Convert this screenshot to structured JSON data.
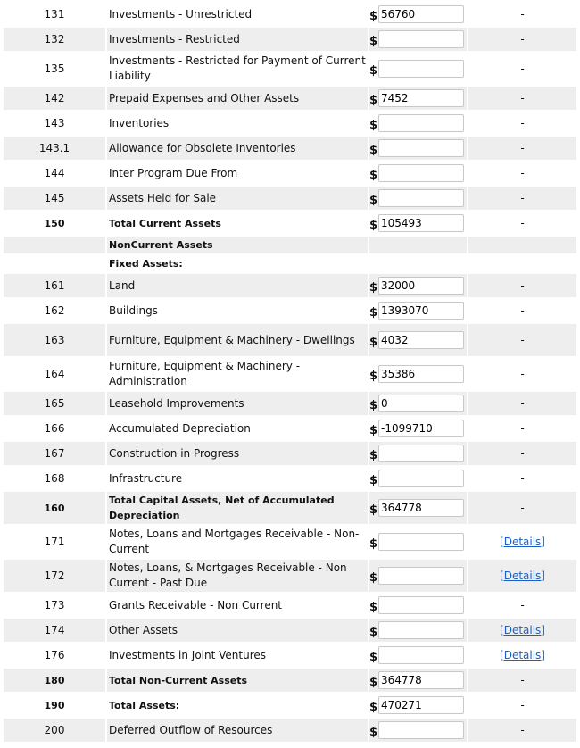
{
  "currency_symbol": "$",
  "details_label": "[Details]",
  "dash": "-",
  "rows": [
    {
      "code": "131",
      "label": "Investments - Unrestricted",
      "value": "56760",
      "action": "dash"
    },
    {
      "code": "132",
      "label": "Investments - Restricted",
      "value": "",
      "action": "dash"
    },
    {
      "code": "135",
      "label": "Investments - Restricted for Payment of Current Liability",
      "value": "",
      "action": "dash",
      "lines": 2
    },
    {
      "code": "142",
      "label": "Prepaid Expenses and Other Assets",
      "value": "7452",
      "action": "dash"
    },
    {
      "code": "143",
      "label": "Inventories",
      "value": "",
      "action": "dash"
    },
    {
      "code": "143.1",
      "label": "Allowance for Obsolete Inventories",
      "value": "",
      "action": "dash"
    },
    {
      "code": "144",
      "label": "Inter Program Due From",
      "value": "",
      "action": "dash"
    },
    {
      "code": "145",
      "label": "Assets Held for Sale",
      "value": "",
      "action": "dash"
    },
    {
      "code": "150",
      "label": "Total Current Assets",
      "value": "105493",
      "action": "dash",
      "bold": true
    },
    {
      "code": "",
      "label": "NonCurrent Assets",
      "header": true,
      "bold": true
    },
    {
      "code": "",
      "label": "Fixed Assets:",
      "header": true,
      "bold": true,
      "nocells": true
    },
    {
      "code": "161",
      "label": "Land",
      "value": "32000",
      "action": "dash"
    },
    {
      "code": "162",
      "label": "Buildings",
      "value": "1393070",
      "action": "dash"
    },
    {
      "code": "163",
      "label": "Furniture, Equipment & Machinery - Dwellings",
      "value": "4032",
      "action": "dash",
      "lines": 2
    },
    {
      "code": "164",
      "label": "Furniture, Equipment & Machinery - Administration",
      "value": "35386",
      "action": "dash",
      "lines": 2
    },
    {
      "code": "165",
      "label": "Leasehold Improvements",
      "value": "0",
      "action": "dash"
    },
    {
      "code": "166",
      "label": "Accumulated Depreciation",
      "value": "-1099710",
      "action": "dash"
    },
    {
      "code": "167",
      "label": "Construction in Progress",
      "value": "",
      "action": "dash"
    },
    {
      "code": "168",
      "label": "Infrastructure",
      "value": "",
      "action": "dash"
    },
    {
      "code": "160",
      "label": "Total Capital Assets, Net of Accumulated Depreciation",
      "value": "364778",
      "action": "dash",
      "bold": true,
      "lines": 2
    },
    {
      "code": "171",
      "label": "Notes, Loans and Mortgages Receivable - Non-Current",
      "value": "",
      "action": "details",
      "lines": 2
    },
    {
      "code": "172",
      "label": "Notes, Loans, & Mortgages Receivable - Non Current - Past Due",
      "value": "",
      "action": "details",
      "lines": 2
    },
    {
      "code": "173",
      "label": "Grants Receivable - Non Current",
      "value": "",
      "action": "dash"
    },
    {
      "code": "174",
      "label": "Other Assets",
      "value": "",
      "action": "details"
    },
    {
      "code": "176",
      "label": "Investments in Joint Ventures",
      "value": "",
      "action": "details"
    },
    {
      "code": "180",
      "label": "Total Non-Current Assets",
      "value": "364778",
      "action": "dash",
      "bold": true
    },
    {
      "code": "190",
      "label": "Total Assets:",
      "value": "470271",
      "action": "dash",
      "bold": true
    },
    {
      "code": "200",
      "label": "Deferred Outflow of Resources",
      "value": "",
      "action": "dash"
    }
  ]
}
